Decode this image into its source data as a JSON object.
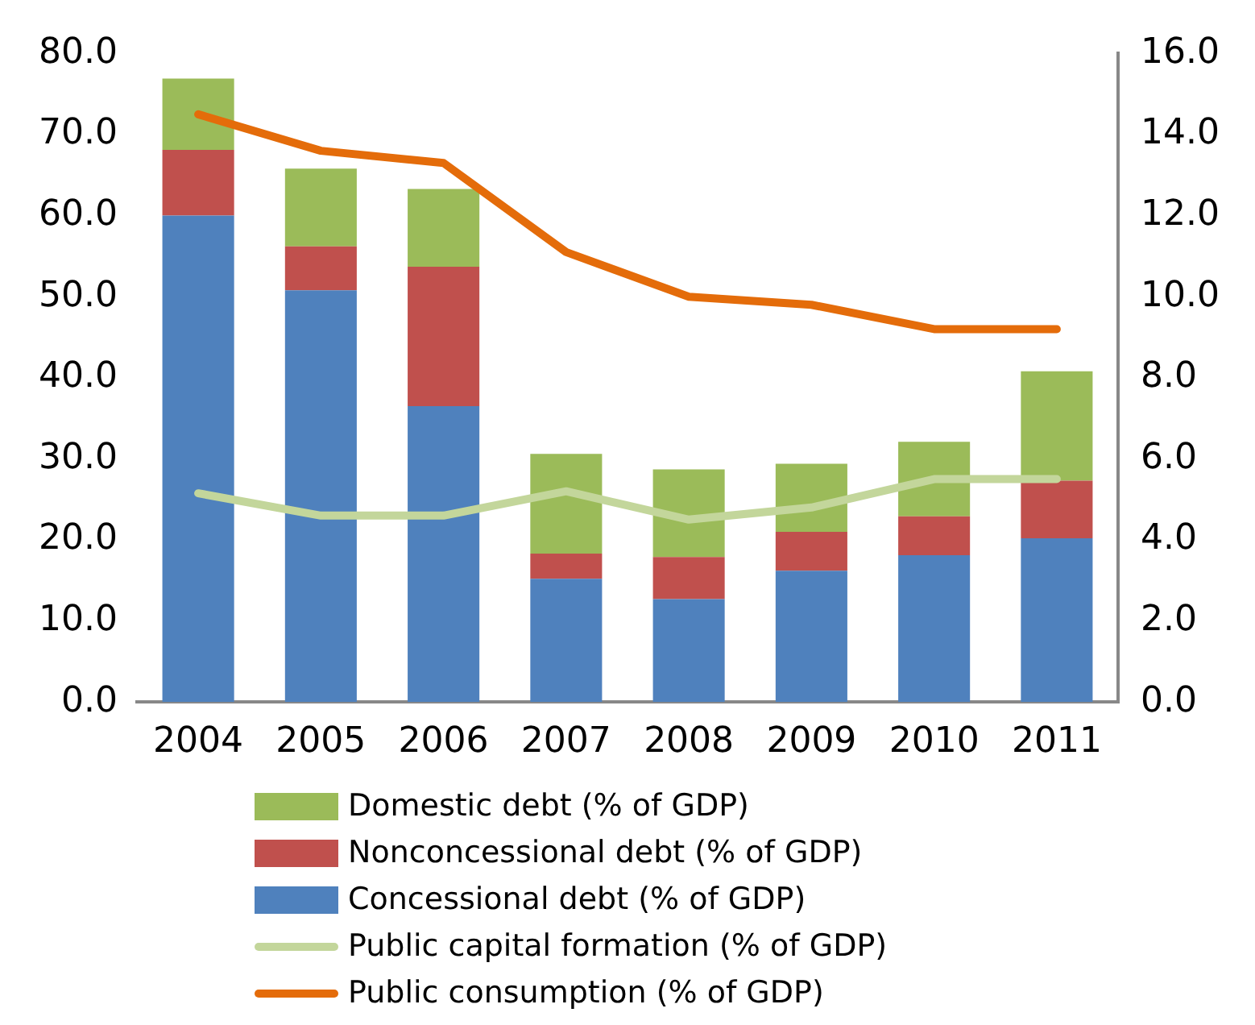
{
  "chart_data": {
    "type": "bar",
    "stacked": true,
    "categories": [
      "2004",
      "2005",
      "2006",
      "2007",
      "2008",
      "2009",
      "2010",
      "2011"
    ],
    "series": [
      {
        "name": "Concessional debt (% of GDP)",
        "color": "#4f81bd",
        "values": [
          60.0,
          50.8,
          36.5,
          15.2,
          12.7,
          16.2,
          18.1,
          20.2
        ]
      },
      {
        "name": "Nonconcessional debt (% of GDP)",
        "color": "#c0504d",
        "values": [
          8.1,
          5.4,
          17.2,
          3.1,
          5.2,
          4.8,
          4.8,
          7.1
        ]
      },
      {
        "name": "Domestic debt (% of GDP)",
        "color": "#9bbb59",
        "values": [
          8.8,
          9.6,
          9.6,
          12.3,
          10.8,
          8.4,
          9.2,
          13.5
        ]
      },
      {
        "name": "Public capital formation (% of GDP)",
        "type": "line",
        "axis": "y2",
        "color": "#c3d69b",
        "values": [
          5.15,
          4.6,
          4.6,
          5.2,
          4.5,
          4.8,
          5.5,
          5.5
        ]
      },
      {
        "name": "Public consumption (% of GDP)",
        "type": "line",
        "axis": "y2",
        "color": "#e46c0a",
        "values": [
          14.5,
          13.6,
          13.3,
          11.1,
          10.0,
          9.8,
          9.2,
          9.2
        ]
      }
    ],
    "ylim": [
      0,
      80
    ],
    "yticks": [
      {
        "value": 0,
        "label": "0.0"
      },
      {
        "value": 10,
        "label": "10.0"
      },
      {
        "value": 20,
        "label": "20.0"
      },
      {
        "value": 30,
        "label": "30.0"
      },
      {
        "value": 40,
        "label": "40.0"
      },
      {
        "value": 50,
        "label": "50.0"
      },
      {
        "value": 60,
        "label": "60.0"
      },
      {
        "value": 70,
        "label": "70.0"
      },
      {
        "value": 80,
        "label": "80.0"
      }
    ],
    "y2lim": [
      0,
      16
    ],
    "y2ticks": [
      {
        "value": 0,
        "label": "0.0"
      },
      {
        "value": 2,
        "label": "2.0"
      },
      {
        "value": 4,
        "label": "4.0"
      },
      {
        "value": 6,
        "label": "6.0"
      },
      {
        "value": 8,
        "label": "8.0"
      },
      {
        "value": 10,
        "label": "10.0"
      },
      {
        "value": 12,
        "label": "12.0"
      },
      {
        "value": 14,
        "label": "14.0"
      },
      {
        "value": 16,
        "label": "16.0"
      }
    ],
    "grid": false,
    "legend": "bottom",
    "marker": "none",
    "line_style": "solid"
  }
}
